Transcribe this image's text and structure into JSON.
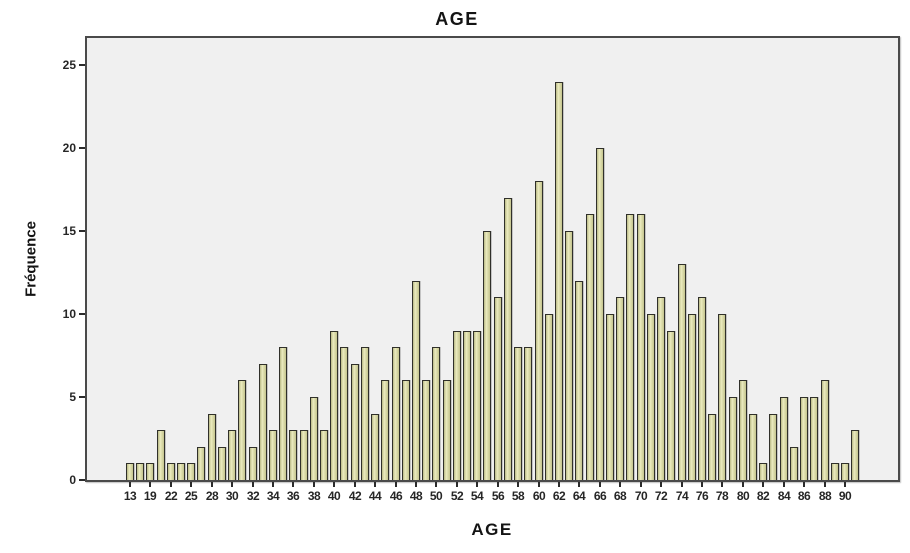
{
  "chart_data": {
    "type": "bar",
    "title": "AGE",
    "xlabel": "AGE",
    "ylabel": "Fréquence",
    "ylim": [
      0,
      26
    ],
    "yticks": [
      0,
      5,
      10,
      15,
      20,
      25
    ],
    "grid": false,
    "legend": "none",
    "bar_count": 72,
    "label_every_n_bars": 2,
    "x_tick_labels": [
      "13",
      "19",
      "22",
      "25",
      "28",
      "30",
      "32",
      "34",
      "36",
      "38",
      "40",
      "42",
      "44",
      "46",
      "48",
      "50",
      "52",
      "54",
      "56",
      "58",
      "60",
      "62",
      "64",
      "66",
      "68",
      "70",
      "72",
      "74",
      "76",
      "78",
      "80",
      "82",
      "84",
      "86",
      "88",
      "90"
    ],
    "values": [
      1,
      1,
      1,
      3,
      1,
      1,
      1,
      2,
      4,
      2,
      3,
      6,
      2,
      7,
      3,
      8,
      3,
      3,
      5,
      3,
      9,
      8,
      7,
      8,
      4,
      6,
      8,
      6,
      12,
      6,
      8,
      6,
      9,
      9,
      9,
      15,
      11,
      17,
      8,
      8,
      18,
      10,
      24,
      15,
      12,
      16,
      20,
      10,
      11,
      16,
      16,
      10,
      11,
      9,
      13,
      10,
      11,
      4,
      10,
      5,
      6,
      4,
      1,
      4,
      5,
      2,
      5,
      5,
      6,
      1,
      1,
      3
    ],
    "colors": {
      "bar_fill": "#d9d9a6",
      "bar_fill_light": "#ebebbf",
      "bar_fill_dark": "#b9b985",
      "bar_border": "#30302a",
      "plot_background": "#f0f0f0",
      "frame": "#4a4a4a",
      "text": "#141414"
    }
  }
}
